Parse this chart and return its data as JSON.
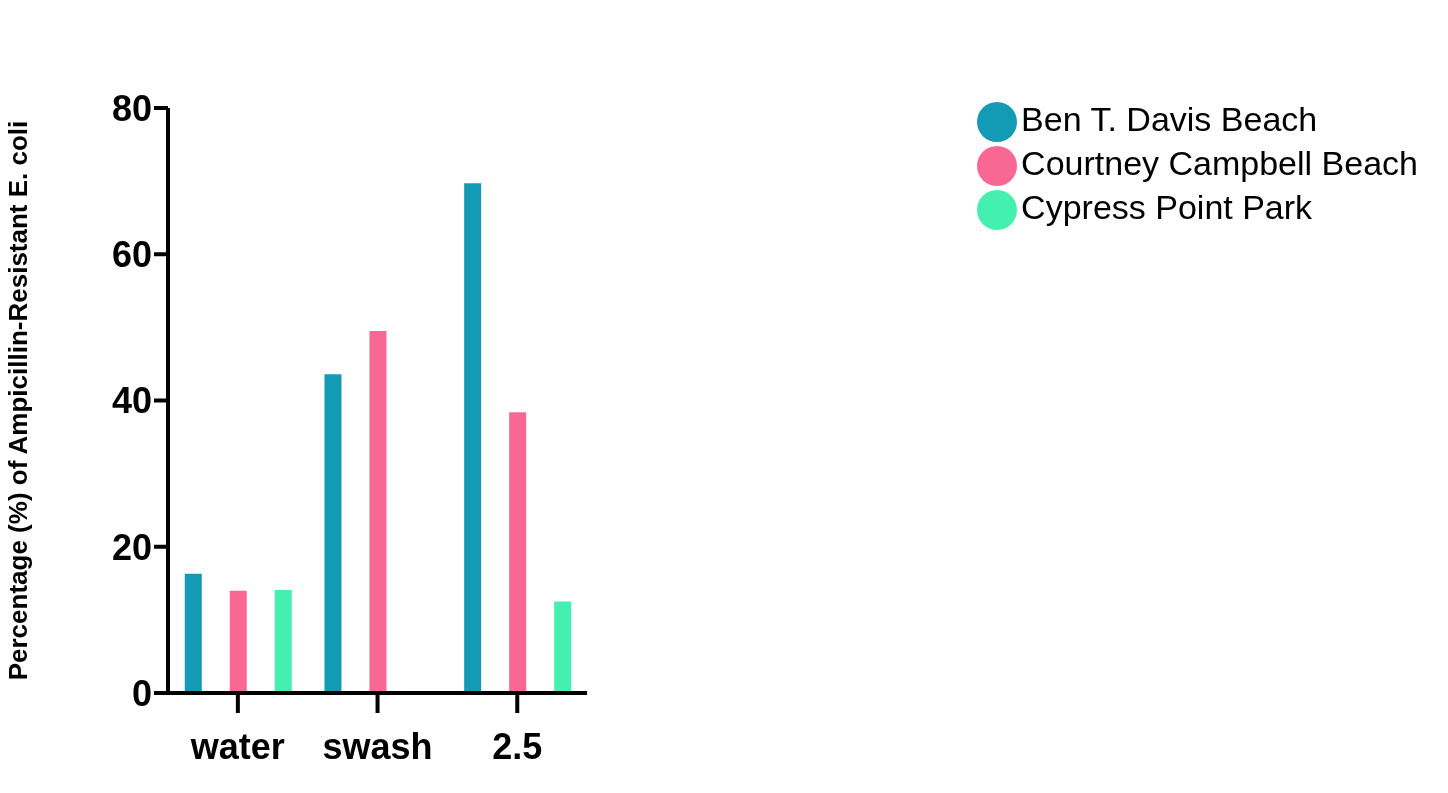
{
  "chart_data": {
    "type": "bar",
    "ylabel": "Percentage (%) of Ampicillin-Resistant  E. coli",
    "categories": [
      "water",
      "swash",
      "2.5"
    ],
    "series": [
      {
        "name": "Ben T.  Davis  Beach",
        "color": "#139ab5",
        "values": [
          16.3,
          43.6,
          69.7
        ]
      },
      {
        "name": "Courtney Campbell Beach",
        "color": "#f96895",
        "values": [
          14.0,
          49.5,
          38.4
        ]
      },
      {
        "name": "Cypress  Point  Park",
        "color": "#44f0b0",
        "values": [
          14.1,
          null,
          12.5
        ]
      }
    ],
    "ylim": [
      0,
      80
    ],
    "yticks": [
      0,
      20,
      40,
      60,
      80
    ],
    "grid": false,
    "legend": "top right"
  }
}
